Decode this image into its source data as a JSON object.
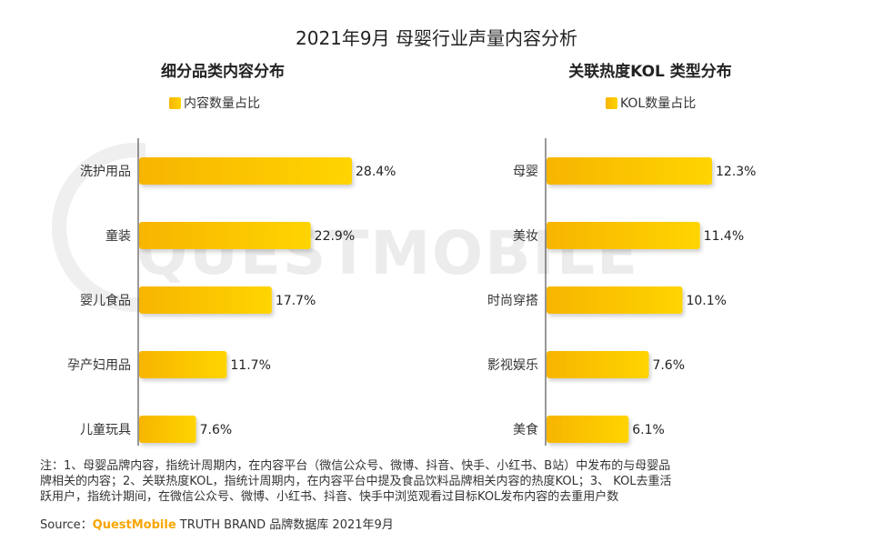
{
  "page": {
    "title": "2021年9月 母婴行业声量内容分析",
    "watermark": "QUESTMOBILE",
    "note_lines": [
      "注：1、母婴品牌内容，指统计周期内，在内容平台（微信公众号、微博、抖音、快手、小红书、B站）中发布的与母婴品",
      "牌相关的内容；2、关联热度KOL，指统计周期内，在内容平台中提及食品饮料品牌相关内容的热度KOL；3、 KOL去重活",
      "跃用户，指统计期间，在微信公众号、微博、小红书、抖音、快手中浏览观看过目标KOL发布内容的去重用户数"
    ],
    "source_label": "Source：",
    "source_brand": "QuestMobile",
    "source_rest": " TRUTH BRAND 品牌数据库 2021年9月",
    "colors": {
      "bar_start": "#f7b500",
      "bar_end": "#ffd400",
      "axis": "#333333"
    }
  },
  "chart_data": [
    {
      "type": "bar",
      "orientation": "horizontal",
      "title": "细分品类内容分布",
      "legend": "内容数量占比",
      "categories": [
        "洗护用品",
        "童装",
        "婴儿食品",
        "孕产妇用品",
        "儿童玩具"
      ],
      "values": [
        28.4,
        22.9,
        17.7,
        11.7,
        7.6
      ],
      "labels": [
        "28.4%",
        "22.9%",
        "17.7%",
        "11.7%",
        "7.6%"
      ],
      "xlim": [
        0,
        28.4
      ],
      "unit": "%"
    },
    {
      "type": "bar",
      "orientation": "horizontal",
      "title": "关联热度KOL 类型分布",
      "legend": "KOL数量占比",
      "categories": [
        "母婴",
        "美妆",
        "时尚穿搭",
        "影视娱乐",
        "美食"
      ],
      "values": [
        12.3,
        11.4,
        10.1,
        7.6,
        6.1
      ],
      "labels": [
        "12.3%",
        "11.4%",
        "10.1%",
        "7.6%",
        "6.1%"
      ],
      "xlim": [
        0,
        12.3
      ],
      "unit": "%"
    }
  ]
}
